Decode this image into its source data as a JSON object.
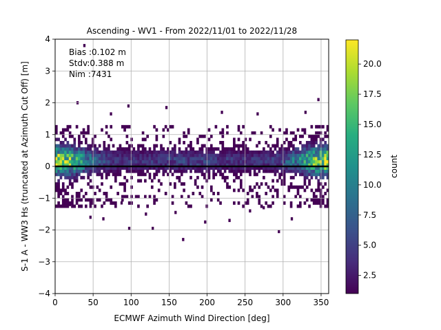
{
  "chart_data": {
    "type": "heatmap",
    "title": "Ascending - WV1 - From 2022/11/01 to 2022/11/28",
    "xlabel": "ECMWF Azimuth Wind Direction [deg]",
    "ylabel": "S-1 A - WW3 Hs (truncated at Azimuth Cut Off) [m]",
    "xlim": [
      0,
      360
    ],
    "ylim": [
      -4,
      4
    ],
    "x_ticks": [
      "0",
      "50",
      "100",
      "150",
      "200",
      "250",
      "300",
      "350"
    ],
    "y_ticks": [
      "4",
      "3",
      "2",
      "1",
      "0",
      "−1",
      "−2",
      "−3",
      "−4"
    ],
    "x_tick_values": [
      0,
      50,
      100,
      150,
      200,
      250,
      300,
      350
    ],
    "y_tick_values": [
      4,
      3,
      2,
      1,
      0,
      -1,
      -2,
      -3,
      -4
    ],
    "grid": true,
    "stats": {
      "bias": "Bias :0.102 m",
      "stdv": "Stdv:0.388 m",
      "nim": "Nim :7431"
    },
    "bias_line_y": 0.0,
    "colorbar": {
      "label": "count",
      "colormap": "viridis",
      "range": [
        1,
        22
      ],
      "ticks": [
        "20.0",
        "17.5",
        "15.0",
        "12.5",
        "10.0",
        "7.5",
        "5.0",
        "2.5"
      ],
      "tick_values": [
        20.0,
        17.5,
        15.0,
        12.5,
        10.0,
        7.5,
        5.0,
        2.5
      ]
    },
    "bin_width_x": 3,
    "bin_height_y": 0.1,
    "outliers": [
      {
        "x": 37,
        "y": 3.8,
        "count": 1
      },
      {
        "x": 28,
        "y": 2.0,
        "count": 1
      },
      {
        "x": 95,
        "y": 1.9,
        "count": 1
      },
      {
        "x": 145,
        "y": 1.85,
        "count": 1
      },
      {
        "x": 345,
        "y": 2.1,
        "count": 1
      },
      {
        "x": 167,
        "y": -2.3,
        "count": 1
      },
      {
        "x": 293,
        "y": -2.05,
        "count": 1
      },
      {
        "x": 96,
        "y": -1.95,
        "count": 1
      },
      {
        "x": 127,
        "y": -1.95,
        "count": 1
      },
      {
        "x": 196,
        "y": -1.75,
        "count": 1
      },
      {
        "x": 228,
        "y": -1.7,
        "count": 1
      },
      {
        "x": 310,
        "y": -1.65,
        "count": 1
      },
      {
        "x": 62,
        "y": -1.65,
        "count": 1
      },
      {
        "x": 45,
        "y": -1.6,
        "count": 1
      },
      {
        "x": 118,
        "y": -1.5,
        "count": 1
      },
      {
        "x": 157,
        "y": -1.45,
        "count": 1
      },
      {
        "x": 255,
        "y": -1.4,
        "count": 1
      },
      {
        "x": 18,
        "y": -1.2,
        "count": 1
      },
      {
        "x": 86,
        "y": -1.15,
        "count": 1
      },
      {
        "x": 273,
        "y": -1.3,
        "count": 1
      },
      {
        "x": 72,
        "y": 1.65,
        "count": 1
      },
      {
        "x": 218,
        "y": 1.7,
        "count": 1
      },
      {
        "x": 265,
        "y": 1.65,
        "count": 1
      },
      {
        "x": 328,
        "y": 1.7,
        "count": 1
      }
    ]
  }
}
